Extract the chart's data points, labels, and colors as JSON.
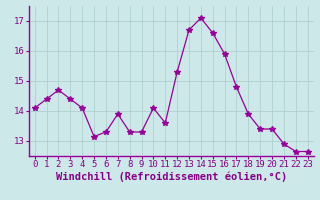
{
  "x": [
    0,
    1,
    2,
    3,
    4,
    5,
    6,
    7,
    8,
    9,
    10,
    11,
    12,
    13,
    14,
    15,
    16,
    17,
    18,
    19,
    20,
    21,
    22,
    23
  ],
  "y": [
    14.1,
    14.4,
    14.7,
    14.4,
    14.1,
    13.15,
    13.3,
    13.9,
    13.3,
    13.3,
    14.1,
    13.6,
    15.3,
    16.7,
    17.1,
    16.6,
    15.9,
    14.8,
    13.9,
    13.4,
    13.4,
    12.9,
    12.65,
    12.65
  ],
  "line_color": "#990099",
  "marker": "*",
  "marker_size": 4,
  "xlabel": "Windchill (Refroidissement éolien,°C)",
  "xlim": [
    -0.5,
    23.5
  ],
  "ylim": [
    12.5,
    17.5
  ],
  "yticks": [
    13,
    14,
    15,
    16,
    17
  ],
  "xticks": [
    0,
    1,
    2,
    3,
    4,
    5,
    6,
    7,
    8,
    9,
    10,
    11,
    12,
    13,
    14,
    15,
    16,
    17,
    18,
    19,
    20,
    21,
    22,
    23
  ],
  "bg_color": "#cce8e8",
  "grid_color": "#aacccc",
  "tick_label_color": "#880088",
  "xlabel_color": "#880088",
  "xlabel_fontsize": 7.5,
  "tick_fontsize": 6.5
}
